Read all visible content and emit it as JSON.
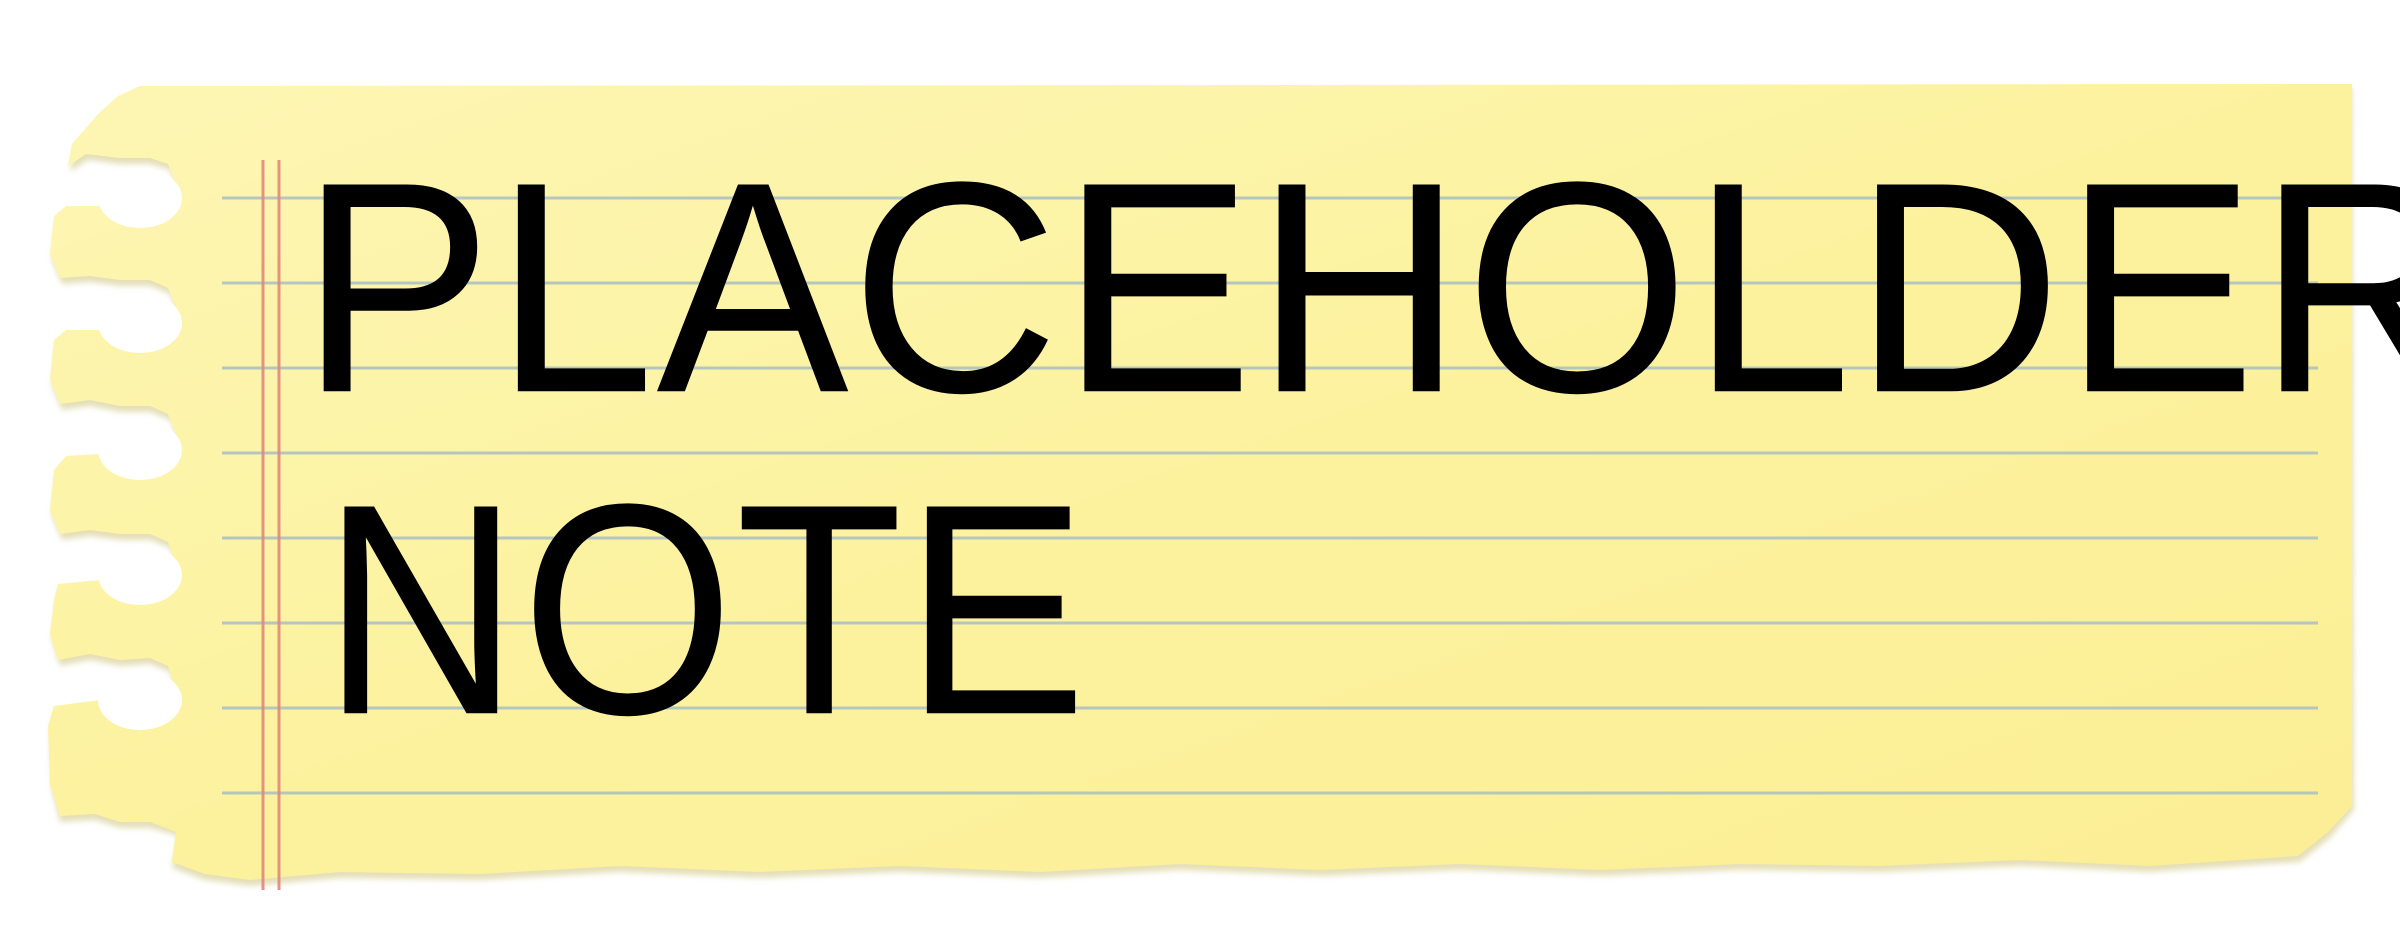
{
  "note": {
    "lines": [
      "PLACEHOLDER",
      "NOTE"
    ],
    "paper_color": "#fcf29e",
    "paper_color_light": "#fdf6b4",
    "paper_shadow_color": "#d9d19a",
    "rule_line_color": "#a9bfc4",
    "margin_line_color": "#e08a7a",
    "text_color": "#000000"
  }
}
